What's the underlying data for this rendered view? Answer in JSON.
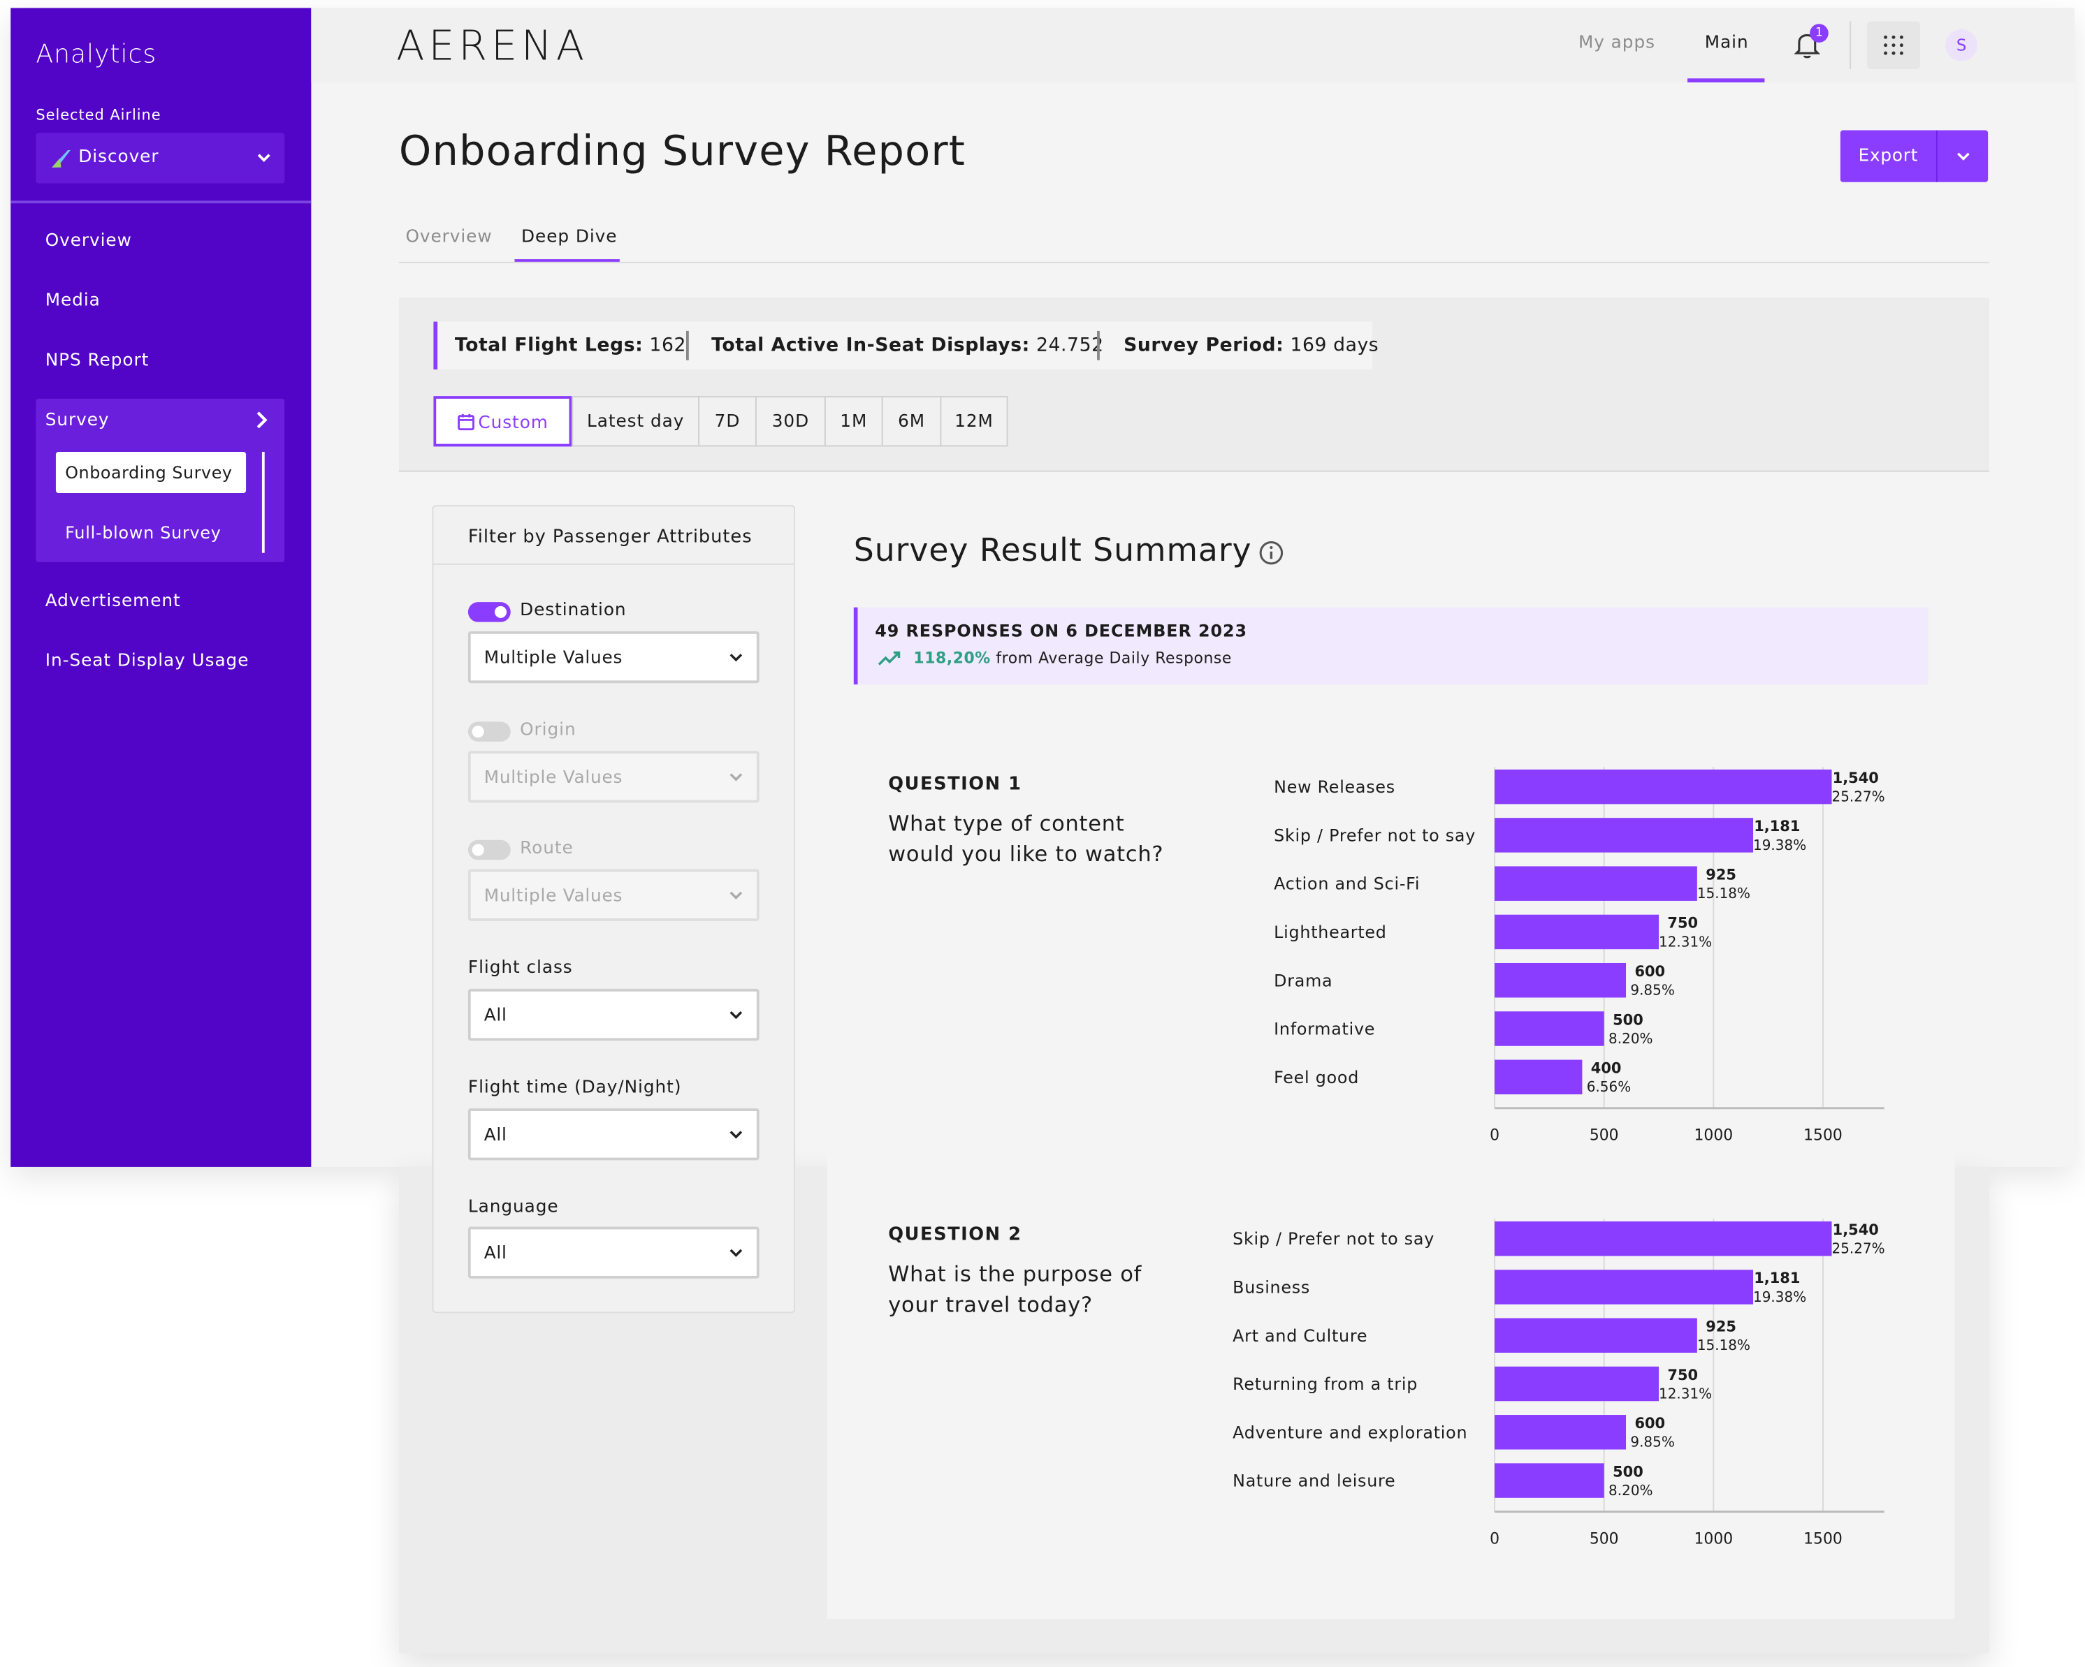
{
  "app": {
    "section_title": "Analytics",
    "brand": "AERENA"
  },
  "sidebar": {
    "airline_label": "Selected Airline",
    "airline_value": "Discover",
    "items": [
      {
        "label": "Overview"
      },
      {
        "label": "Media"
      },
      {
        "label": "NPS Report"
      },
      {
        "label": "Survey"
      },
      {
        "label": "Advertisement"
      },
      {
        "label": "In-Seat Display Usage"
      }
    ],
    "survey_sub": [
      "Onboarding Survey",
      "Full-blown Survey"
    ]
  },
  "topnav": {
    "my_apps": "My apps",
    "main": "Main",
    "notification_count": "1",
    "avatar": "S"
  },
  "page": {
    "title": "Onboarding Survey Report",
    "export_label": "Export",
    "tabs": [
      {
        "label": "Overview"
      },
      {
        "label": "Deep Dive"
      }
    ],
    "active_tab": "Deep Dive"
  },
  "stats": [
    {
      "label": "Total Flight Legs:",
      "value": "162"
    },
    {
      "label": "Total Active In-Seat Displays:",
      "value": "24.752"
    },
    {
      "label": "Survey Period:",
      "value": "169 days"
    }
  ],
  "time_filters": [
    "Custom",
    "Latest day",
    "7D",
    "30D",
    "1M",
    "6M",
    "12M"
  ],
  "selected_time_filter": "Custom",
  "filters": {
    "title": "Filter by Passenger Attributes",
    "destination": {
      "label": "Destination",
      "value": "Multiple Values",
      "enabled": true
    },
    "origin": {
      "label": "Origin",
      "value": "Multiple Values",
      "enabled": false
    },
    "route": {
      "label": "Route",
      "value": "Multiple Values",
      "enabled": false
    },
    "flight_class": {
      "label": "Flight class",
      "value": "All"
    },
    "flight_time": {
      "label": "Flight time (Day/Night)",
      "value": "All"
    },
    "language": {
      "label": "Language",
      "value": "All"
    }
  },
  "summary": {
    "title": "Survey Result Summary",
    "responses_heading": "49 RESPONSES ON 6 DECEMBER 2023",
    "change_value": "118,20%",
    "change_text": "from Average Daily Response"
  },
  "colors": {
    "brand_purple": "#5205c6",
    "accent": "#8a3dff",
    "bar": "#8a3dff",
    "positive": "#2e9e84"
  },
  "chart_data": [
    {
      "type": "bar",
      "orientation": "horizontal",
      "label": "QUESTION 1",
      "question": "What type of content would you like to watch?",
      "categories": [
        "New Releases",
        "Skip / Prefer not to say",
        "Action and Sci-Fi",
        "Lighthearted",
        "Drama",
        "Informative",
        "Feel good"
      ],
      "values": [
        1540,
        1181,
        925,
        750,
        600,
        500,
        400
      ],
      "value_labels": [
        "1,540",
        "1,181",
        "925",
        "750",
        "600",
        "500",
        "400"
      ],
      "percent_labels": [
        "25.27%",
        "19.38%",
        "15.18%",
        "12.31%",
        "9.85%",
        "8.20%",
        "6.56%"
      ],
      "xticks": [
        "0",
        "500",
        "1000",
        "1500"
      ],
      "xlim": [
        0,
        1780
      ],
      "grid": true
    },
    {
      "type": "bar",
      "orientation": "horizontal",
      "label": "QUESTION 2",
      "question": "What is the purpose of your travel today?",
      "categories": [
        "Skip / Prefer not to say",
        "Business",
        "Art and Culture",
        "Returning from a trip",
        "Adventure and exploration",
        "Nature and leisure"
      ],
      "values": [
        1540,
        1181,
        925,
        750,
        600,
        500
      ],
      "value_labels": [
        "1,540",
        "1,181",
        "925",
        "750",
        "600",
        "500"
      ],
      "percent_labels": [
        "25.27%",
        "19.38%",
        "15.18%",
        "12.31%",
        "9.85%",
        "8.20%"
      ],
      "xticks": [
        "0",
        "500",
        "1000",
        "1500"
      ],
      "xlim": [
        0,
        1780
      ],
      "grid": true
    }
  ]
}
